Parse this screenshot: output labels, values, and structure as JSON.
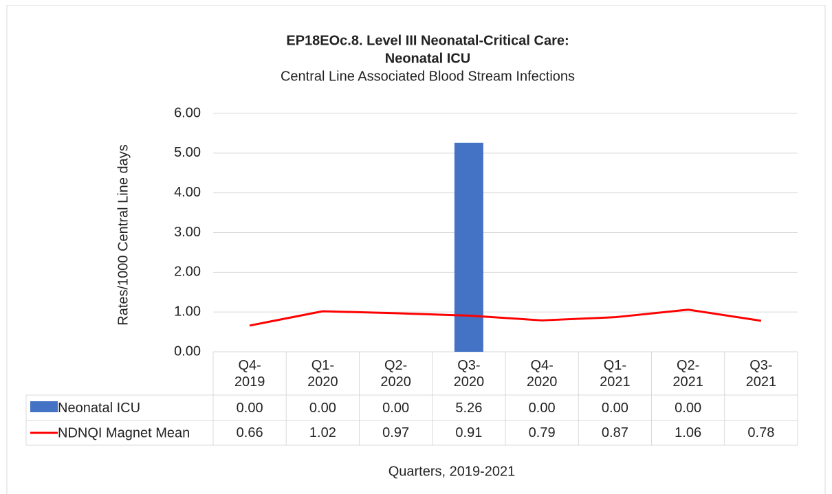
{
  "chart_data": {
    "type": "bar-line",
    "title": "EP18EOc.8. Level III Neonatal-Critical Care:",
    "title_line2": "Neonatal ICU",
    "subtitle": "Central Line Associated Blood Stream Infections",
    "y_label": "Rates/1000 Central Line days",
    "x_label": "Quarters, 2019-2021",
    "categories": [
      "Q4-\n2019",
      "Q1-\n2020",
      "Q2-\n2020",
      "Q3-\n2020",
      "Q4-\n2020",
      "Q1-\n2021",
      "Q2-\n2021",
      "Q3-\n2021"
    ],
    "series": [
      {
        "name": "Neonatal ICU",
        "type": "bar",
        "color": "#4472c4",
        "values": [
          0,
          0,
          0,
          5.26,
          0,
          0,
          0,
          null
        ],
        "value_labels": [
          "0.00",
          "0.00",
          "0.00",
          "5.26",
          "0.00",
          "0.00",
          "0.00",
          null
        ]
      },
      {
        "name": "NDNQI Magnet Mean",
        "type": "line",
        "color": "#ff0000",
        "values": [
          0.66,
          1.02,
          0.97,
          0.91,
          0.79,
          0.87,
          1.06,
          0.78
        ]
      }
    ],
    "ylim": [
      0,
      6
    ],
    "yticks": [
      {
        "value": 0,
        "label": "0.00"
      },
      {
        "value": 1,
        "label": "1.00"
      },
      {
        "value": 2,
        "label": "2.00"
      },
      {
        "value": 3,
        "label": "3.00"
      },
      {
        "value": 4,
        "label": "4.00"
      },
      {
        "value": 5,
        "label": "5.00"
      },
      {
        "value": 6,
        "label": "6.00"
      }
    ],
    "grid": true
  }
}
